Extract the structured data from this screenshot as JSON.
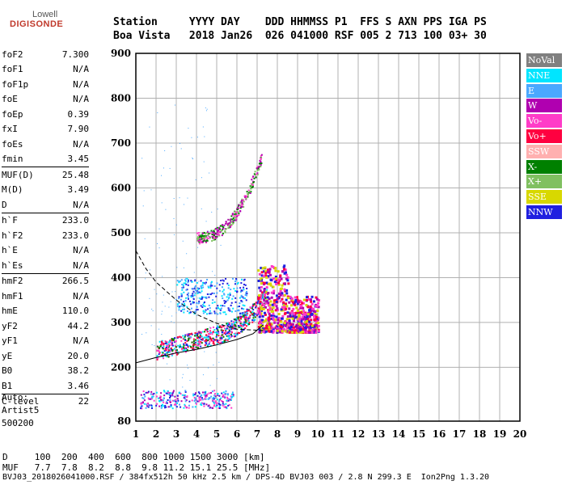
{
  "logo": {
    "top": "Lowell",
    "main": "DIGISONDE"
  },
  "header": {
    "line1": "Station     YYYY DAY    DDD HHMMSS P1  FFS S AXN PPS IGA PS",
    "line2": "Boa Vista   2018 Jan26  026 041000 RSF 005 2 713 100 03+ 30"
  },
  "params": [
    {
      "name": "foF2",
      "value": "7.300",
      "sep": false
    },
    {
      "name": "foF1",
      "value": "N/A",
      "sep": false
    },
    {
      "name": "foF1p",
      "value": "N/A",
      "sep": false
    },
    {
      "name": "foE",
      "value": "N/A",
      "sep": false
    },
    {
      "name": "foEp",
      "value": "0.39",
      "sep": false
    },
    {
      "name": "fxI",
      "value": "7.90",
      "sep": false
    },
    {
      "name": "foEs",
      "value": "N/A",
      "sep": false
    },
    {
      "name": "fmin",
      "value": "3.45",
      "sep": false
    },
    {
      "name": "MUF(D)",
      "value": "25.48",
      "sep": true
    },
    {
      "name": "M(D)",
      "value": "3.49",
      "sep": false
    },
    {
      "name": "D",
      "value": "N/A",
      "sep": false
    },
    {
      "name": "h`F",
      "value": "233.0",
      "sep": true
    },
    {
      "name": "h`F2",
      "value": "233.0",
      "sep": false
    },
    {
      "name": "h`E",
      "value": "N/A",
      "sep": false
    },
    {
      "name": "h`Es",
      "value": "N/A",
      "sep": false
    },
    {
      "name": "hmF2",
      "value": "266.5",
      "sep": true
    },
    {
      "name": "hmF1",
      "value": "N/A",
      "sep": false
    },
    {
      "name": "hmE",
      "value": "110.0",
      "sep": false
    },
    {
      "name": "yF2",
      "value": "44.2",
      "sep": false
    },
    {
      "name": "yF1",
      "value": "N/A",
      "sep": false
    },
    {
      "name": "yE",
      "value": "20.0",
      "sep": false
    },
    {
      "name": "B0",
      "value": "38.2",
      "sep": false
    },
    {
      "name": "B1",
      "value": "3.46",
      "sep": false
    },
    {
      "name": "C-level",
      "value": "22",
      "sep": true
    }
  ],
  "auto": {
    "line1": "Auto:",
    "line2": "Artist5",
    "line3": "500200"
  },
  "legend": [
    {
      "label": "NoVal",
      "color": "#808080"
    },
    {
      "label": "NNE",
      "color": "#00e5ff"
    },
    {
      "label": "E",
      "color": "#4aa8ff"
    },
    {
      "label": "W",
      "color": "#b000b0"
    },
    {
      "label": "Vo-",
      "color": "#ff3cc8"
    },
    {
      "label": "Vo+",
      "color": "#ff0040"
    },
    {
      "label": "SSW",
      "color": "#ffb0b0"
    },
    {
      "label": "X-",
      "color": "#008000"
    },
    {
      "label": "X+",
      "color": "#80c060"
    },
    {
      "label": "SSE",
      "color": "#d8d800"
    },
    {
      "label": "NNW",
      "color": "#2020e0"
    }
  ],
  "chart_data": {
    "type": "scatter",
    "x_ticks": [
      "1",
      "2",
      "3",
      "4",
      "5",
      "6",
      "7",
      "8",
      "9",
      "10",
      "11",
      "12",
      "13",
      "14",
      "15",
      "16",
      "17",
      "18",
      "19",
      "20"
    ],
    "y_ticks": [
      "80",
      "200",
      "300",
      "400",
      "500",
      "600",
      "700",
      "800",
      "900"
    ],
    "xlim": [
      1,
      20
    ],
    "ylim": [
      80,
      900
    ],
    "grid": true,
    "clusters": [
      {
        "name": "E-layer echo",
        "x_range": [
          1.2,
          5.8
        ],
        "y_range": [
          110,
          150
        ],
        "colors": [
          "#2020e0",
          "#b000b0",
          "#ff3cc8",
          "#00e5ff",
          "#4aa8ff"
        ]
      },
      {
        "name": "F-trace lower",
        "x_range": [
          2.0,
          7.5
        ],
        "y_range": [
          220,
          320
        ],
        "colors": [
          "#ff0040",
          "#ff3cc8",
          "#2020e0",
          "#00e5ff",
          "#008000"
        ]
      },
      {
        "name": "F-spread",
        "x_range": [
          7.0,
          10.0
        ],
        "y_range": [
          270,
          440
        ],
        "colors": [
          "#2020e0",
          "#ff0040",
          "#d8d800",
          "#b000b0",
          "#ff3cc8"
        ]
      },
      {
        "name": "Second hop",
        "x_range": [
          4.0,
          7.2
        ],
        "y_range": [
          480,
          640
        ],
        "colors": [
          "#008000",
          "#80c060",
          "#ff3cc8",
          "#b000b0"
        ]
      },
      {
        "name": "Blue band",
        "x_range": [
          3.0,
          6.5
        ],
        "y_range": [
          320,
          400
        ],
        "colors": [
          "#4aa8ff",
          "#00e5ff",
          "#2020e0"
        ]
      }
    ],
    "profile_curve": [
      [
        1,
        210
      ],
      [
        2,
        222
      ],
      [
        3,
        232
      ],
      [
        4,
        240
      ],
      [
        5,
        250
      ],
      [
        6,
        262
      ],
      [
        6.8,
        275
      ],
      [
        7.3,
        295
      ]
    ],
    "upper_dashed": [
      [
        1,
        460
      ],
      [
        1.5,
        420
      ],
      [
        2,
        390
      ],
      [
        3,
        350
      ],
      [
        4,
        318
      ],
      [
        5,
        298
      ],
      [
        6,
        285
      ],
      [
        7.3,
        282
      ]
    ]
  },
  "footer": {
    "line1": "D     100  200  400  600  800 1000 1500 3000 [km]",
    "line2": "MUF   7.7  7.8  8.2  8.8  9.8 11.2 15.1 25.5 [MHz]",
    "line3": "BVJ03_2018026041000.RSF / 384fx512h 50 kHz 2.5 km / DPS-4D BVJ03 003 / 2.8 N 299.3 E  Ion2Png 1.3.20"
  }
}
